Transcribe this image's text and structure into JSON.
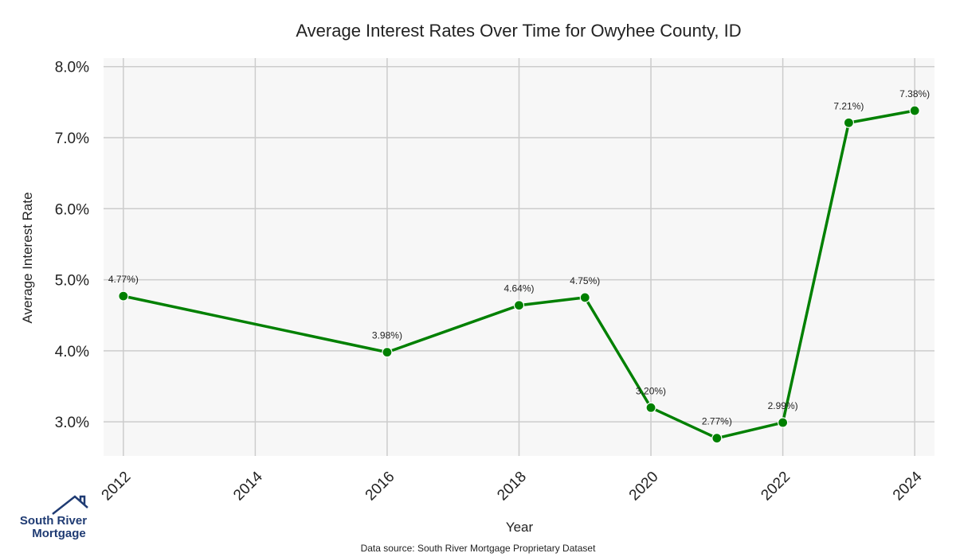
{
  "chart_data": {
    "type": "line",
    "title": "Average Interest Rates Over Time for Owyhee County, ID",
    "xlabel": "Year",
    "ylabel": "Average Interest Rate",
    "x": [
      2012,
      2016,
      2018,
      2019,
      2020,
      2021,
      2022,
      2023,
      2024
    ],
    "series": [
      {
        "values": [
          4.77,
          3.98,
          4.64,
          4.75,
          3.2,
          2.77,
          2.99,
          7.21,
          7.38
        ],
        "point_labels": [
          "4.77%)",
          "3.98%)",
          "4.64%)",
          "4.75%)",
          "3.20%)",
          "2.77%)",
          "2.99%)",
          "7.21%)",
          "7.38%)"
        ],
        "color": "#008000"
      }
    ],
    "x_ticks": [
      2012,
      2014,
      2016,
      2018,
      2020,
      2022,
      2024
    ],
    "x_tick_labels": [
      "2012",
      "2014",
      "2016",
      "2018",
      "2020",
      "2022",
      "2024"
    ],
    "y_ticks": [
      3.0,
      4.0,
      5.0,
      6.0,
      7.0,
      8.0
    ],
    "y_tick_labels": [
      "3.0%",
      "4.0%",
      "5.0%",
      "6.0%",
      "7.0%",
      "8.0%"
    ],
    "xlim": [
      2011.7,
      2024.3
    ],
    "ylim": [
      2.52,
      8.12
    ],
    "grid": true,
    "x_tick_rotation": -45,
    "plot_background": "#f7f7f7",
    "grid_color": "#cccccc"
  },
  "source_note": "Data source: South River Mortgage Proprietary Dataset",
  "logo": {
    "line1": "South River",
    "line2": "Mortgage",
    "color": "#1f3b73"
  }
}
